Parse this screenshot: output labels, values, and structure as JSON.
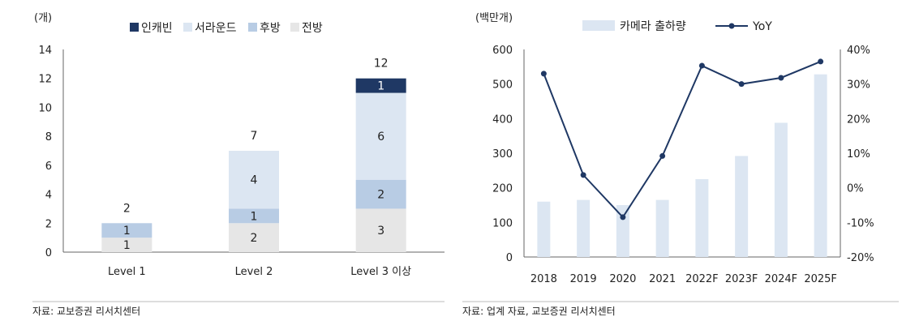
{
  "chart_data": [
    {
      "type": "bar",
      "stacked": true,
      "ylabel": "(개)",
      "ylim": [
        0,
        14
      ],
      "yticks": [
        0,
        2,
        4,
        6,
        8,
        10,
        12,
        14
      ],
      "categories": [
        "Level 1",
        "Level 2",
        "Level 3 이상"
      ],
      "legend_position": "top",
      "series": [
        {
          "name": "전방",
          "values": [
            1,
            2,
            3
          ],
          "color": "#e6e6e6"
        },
        {
          "name": "후방",
          "values": [
            1,
            1,
            2
          ],
          "color": "#b8cce4"
        },
        {
          "name": "서라운드",
          "values": [
            0,
            4,
            6
          ],
          "color": "#dce6f2"
        },
        {
          "name": "인캐빈",
          "values": [
            0,
            0,
            1
          ],
          "color": "#1f3864"
        }
      ],
      "legend_order": [
        3,
        2,
        1,
        0
      ],
      "totals": [
        "2",
        "7",
        "12"
      ],
      "source": "자료: 교보증권 리서치센터"
    },
    {
      "type": "bar+line",
      "ylabel": "(백만개)",
      "ylim": [
        0,
        600
      ],
      "yticks": [
        0,
        100,
        200,
        300,
        400,
        500,
        600
      ],
      "y2lim": [
        -20,
        40
      ],
      "y2ticks": [
        "-20%",
        "-10%",
        "0%",
        "10%",
        "20%",
        "30%",
        "40%"
      ],
      "categories": [
        "2018",
        "2019",
        "2020",
        "2021",
        "2022F",
        "2023F",
        "2024F",
        "2025F"
      ],
      "legend_position": "top",
      "bar_series": {
        "name": "카메라 출하량",
        "values": [
          160,
          165,
          150,
          165,
          225,
          292,
          388,
          528
        ],
        "color": "#dce6f2"
      },
      "line_series": {
        "name": "YoY",
        "values": [
          33,
          3.7,
          -8.5,
          9.2,
          35.3,
          30.0,
          31.8,
          36.5
        ],
        "color": "#1f3864"
      },
      "source": "자료: 업계 자료, 교보증권 리서치센터"
    }
  ]
}
